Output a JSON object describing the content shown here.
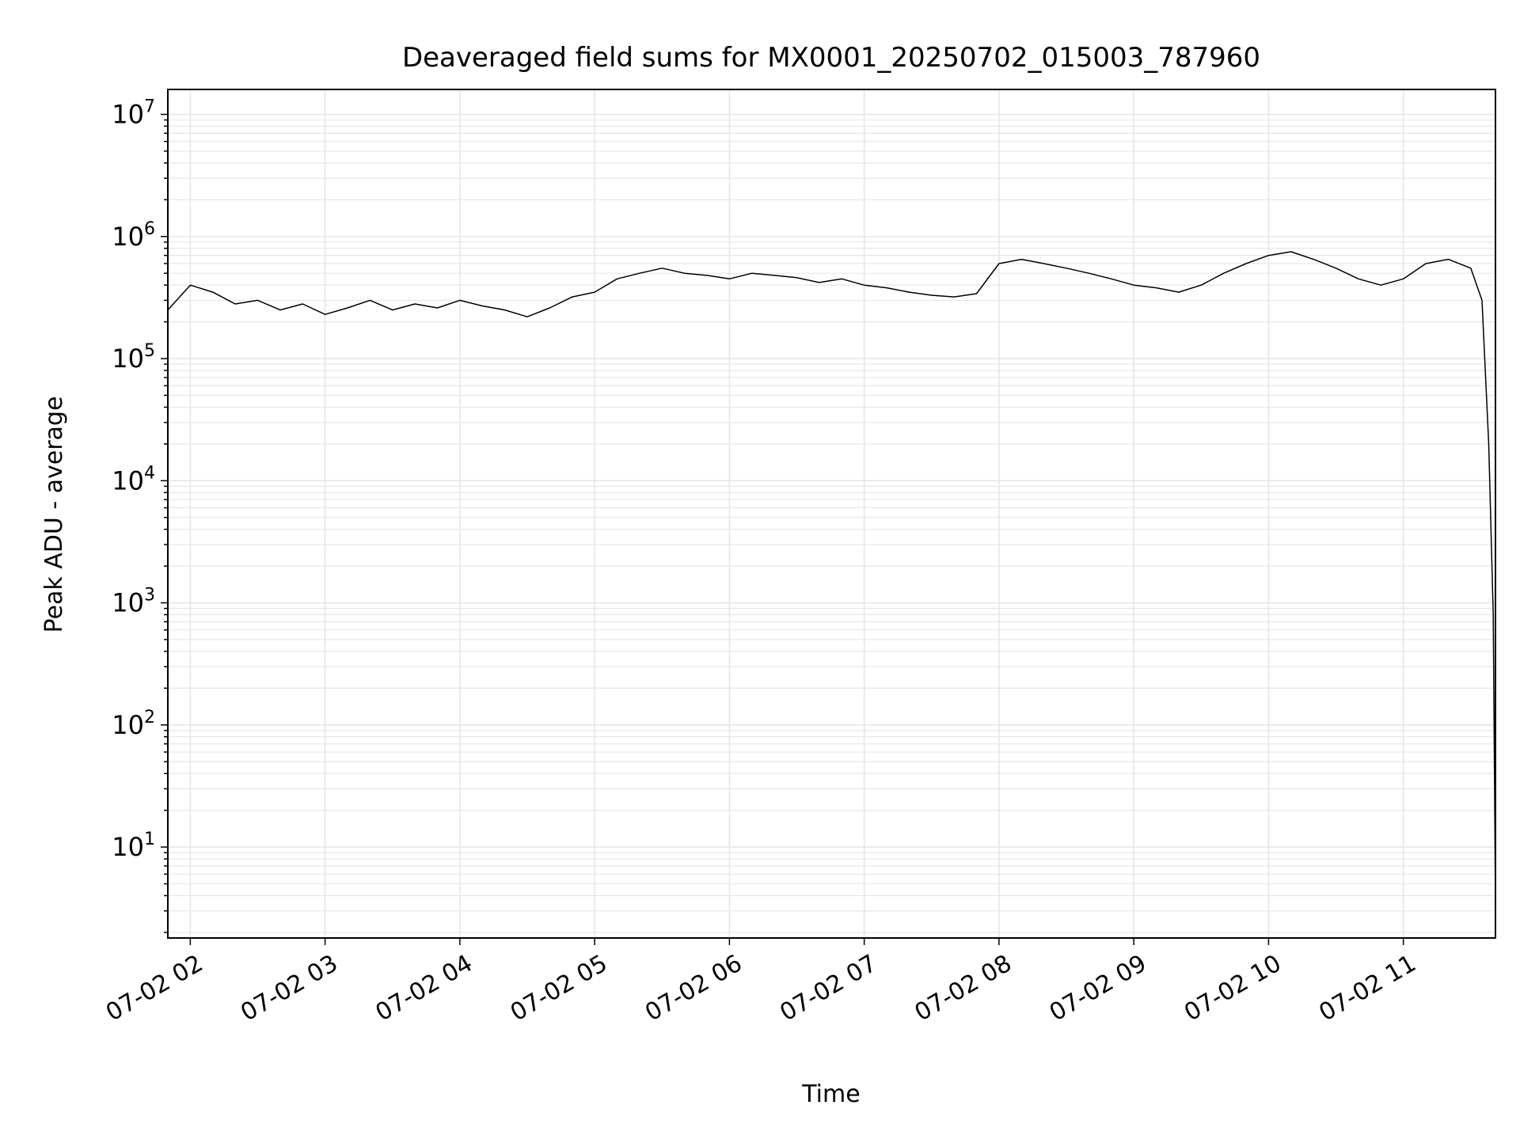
{
  "chart_data": {
    "type": "line",
    "title": "Deaveraged field sums for MX0001_20250702_015003_787960",
    "xlabel": "Time",
    "ylabel": "Peak ADU - average",
    "y_scale": "log",
    "ylim": [
      1.8,
      16000000
    ],
    "xlim": [
      "07-02 01:50",
      "07-02 11:41"
    ],
    "grid": "major and minor, light gray",
    "line_color": "#000000",
    "x_tick_labels": [
      "07-02 02",
      "07-02 03",
      "07-02 04",
      "07-02 05",
      "07-02 06",
      "07-02 07",
      "07-02 08",
      "07-02 09",
      "07-02 10",
      "07-02 11"
    ],
    "y_ticks": [
      {
        "base": "10",
        "exp": "1",
        "value": 10
      },
      {
        "base": "10",
        "exp": "2",
        "value": 100
      },
      {
        "base": "10",
        "exp": "3",
        "value": 1000
      },
      {
        "base": "10",
        "exp": "4",
        "value": 10000
      },
      {
        "base": "10",
        "exp": "5",
        "value": 100000
      },
      {
        "base": "10",
        "exp": "6",
        "value": 1000000
      },
      {
        "base": "10",
        "exp": "7",
        "value": 10000000
      }
    ],
    "x": [
      "07-02 01:50",
      "07-02 02:00",
      "07-02 02:10",
      "07-02 02:20",
      "07-02 02:30",
      "07-02 02:40",
      "07-02 02:50",
      "07-02 03:00",
      "07-02 03:10",
      "07-02 03:20",
      "07-02 03:30",
      "07-02 03:40",
      "07-02 03:50",
      "07-02 04:00",
      "07-02 04:10",
      "07-02 04:20",
      "07-02 04:30",
      "07-02 04:40",
      "07-02 04:50",
      "07-02 05:00",
      "07-02 05:10",
      "07-02 05:20",
      "07-02 05:30",
      "07-02 05:40",
      "07-02 05:50",
      "07-02 06:00",
      "07-02 06:10",
      "07-02 06:20",
      "07-02 06:30",
      "07-02 06:40",
      "07-02 06:50",
      "07-02 07:00",
      "07-02 07:10",
      "07-02 07:20",
      "07-02 07:30",
      "07-02 07:40",
      "07-02 07:50",
      "07-02 08:00",
      "07-02 08:10",
      "07-02 08:20",
      "07-02 08:30",
      "07-02 08:40",
      "07-02 08:50",
      "07-02 09:00",
      "07-02 09:10",
      "07-02 09:20",
      "07-02 09:30",
      "07-02 09:40",
      "07-02 09:50",
      "07-02 10:00",
      "07-02 10:10",
      "07-02 10:20",
      "07-02 10:30",
      "07-02 10:40",
      "07-02 10:50",
      "07-02 11:00",
      "07-02 11:10",
      "07-02 11:20",
      "07-02 11:30",
      "07-02 11:35",
      "07-02 11:38",
      "07-02 11:40",
      "07-02 11:41"
    ],
    "series": [
      {
        "values": [
          250000,
          400000,
          350000,
          280000,
          300000,
          250000,
          280000,
          230000,
          260000,
          300000,
          250000,
          280000,
          260000,
          300000,
          270000,
          250000,
          220000,
          260000,
          320000,
          350000,
          450000,
          500000,
          550000,
          500000,
          480000,
          450000,
          500000,
          480000,
          460000,
          420000,
          450000,
          400000,
          380000,
          350000,
          330000,
          320000,
          340000,
          600000,
          650000,
          600000,
          550000,
          500000,
          450000,
          400000,
          380000,
          350000,
          400000,
          500000,
          600000,
          700000,
          750000,
          650000,
          550000,
          450000,
          400000,
          450000,
          600000,
          650000,
          550000,
          300000,
          20000,
          800,
          3.5
        ]
      }
    ]
  }
}
